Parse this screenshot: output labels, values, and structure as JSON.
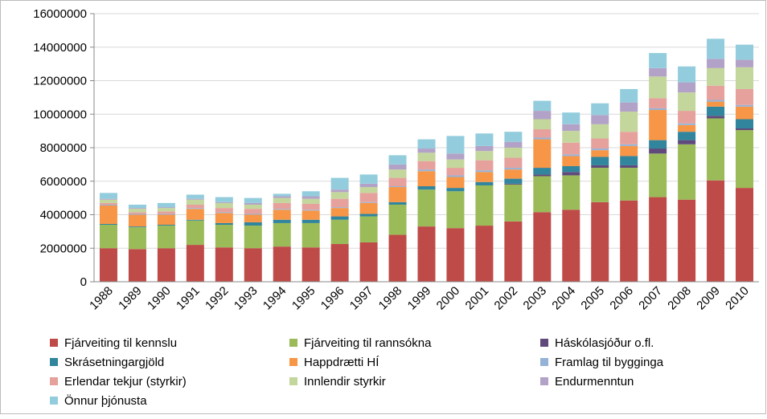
{
  "chart_data": {
    "type": "stacked_bar",
    "categories": [
      "1988",
      "1989",
      "1990",
      "1991",
      "1992",
      "1993",
      "1994",
      "1995",
      "1996",
      "1997",
      "1998",
      "1999",
      "2000",
      "2001",
      "2002",
      "2003",
      "2004",
      "2005",
      "2006",
      "2007",
      "2008",
      "2009",
      "2010"
    ],
    "ylim": [
      0,
      16000000
    ],
    "yticks": [
      0,
      2000000,
      4000000,
      6000000,
      8000000,
      10000000,
      12000000,
      14000000,
      16000000
    ],
    "grid": true,
    "series": [
      {
        "name": "Fjárveiting til kennslu",
        "color": "#be4b48",
        "values": [
          2000000,
          1950000,
          2000000,
          2200000,
          2050000,
          2000000,
          2100000,
          2050000,
          2250000,
          2350000,
          2800000,
          3300000,
          3200000,
          3350000,
          3600000,
          4150000,
          4300000,
          4750000,
          4850000,
          5050000,
          4900000,
          6050000,
          5600000
        ]
      },
      {
        "name": "Fjárveiting til rannsókna",
        "color": "#9bbb59",
        "values": [
          1400000,
          1300000,
          1350000,
          1450000,
          1350000,
          1350000,
          1400000,
          1450000,
          1450000,
          1550000,
          1800000,
          2200000,
          2200000,
          2400000,
          2200000,
          2150000,
          2050000,
          2050000,
          1950000,
          2600000,
          3300000,
          3700000,
          3450000
        ]
      },
      {
        "name": "Háskólasjóður o.fl.",
        "color": "#604a7b",
        "values": [
          0,
          0,
          0,
          0,
          0,
          0,
          0,
          0,
          0,
          0,
          0,
          0,
          0,
          0,
          50000,
          100000,
          200000,
          150000,
          150000,
          300000,
          250000,
          150000,
          100000
        ]
      },
      {
        "name": "Skrásetningargjöld",
        "color": "#31859c",
        "values": [
          50000,
          50000,
          50000,
          50000,
          100000,
          200000,
          200000,
          200000,
          200000,
          150000,
          150000,
          200000,
          200000,
          200000,
          300000,
          400000,
          350000,
          500000,
          550000,
          500000,
          500000,
          550000,
          550000
        ]
      },
      {
        "name": "Happdrætti HÍ",
        "color": "#f79646",
        "values": [
          1100000,
          700000,
          600000,
          650000,
          600000,
          450000,
          600000,
          550000,
          500000,
          650000,
          900000,
          900000,
          650000,
          600000,
          550000,
          1700000,
          600000,
          400000,
          600000,
          1800000,
          400000,
          300000,
          750000
        ]
      },
      {
        "name": "Framlag til bygginga",
        "color": "#95b3d7",
        "values": [
          50000,
          50000,
          50000,
          50000,
          50000,
          50000,
          50000,
          50000,
          50000,
          50000,
          50000,
          100000,
          100000,
          100000,
          100000,
          100000,
          100000,
          100000,
          100000,
          100000,
          100000,
          100000,
          100000
        ]
      },
      {
        "name": "Erlendar tekjur (styrkir)",
        "color": "#e6a19d",
        "values": [
          100000,
          100000,
          150000,
          200000,
          250000,
          300000,
          350000,
          350000,
          500000,
          550000,
          500000,
          500000,
          450000,
          600000,
          600000,
          500000,
          700000,
          600000,
          750000,
          600000,
          750000,
          850000,
          950000
        ]
      },
      {
        "name": "Innlendir styrkir",
        "color": "#c3d69b",
        "values": [
          200000,
          200000,
          200000,
          300000,
          300000,
          250000,
          300000,
          300000,
          400000,
          350000,
          500000,
          500000,
          500000,
          550000,
          600000,
          600000,
          700000,
          850000,
          1200000,
          1300000,
          1100000,
          1050000,
          1300000
        ]
      },
      {
        "name": "Endurmenntun",
        "color": "#b3a2c7",
        "values": [
          50000,
          50000,
          50000,
          50000,
          50000,
          100000,
          100000,
          150000,
          150000,
          200000,
          300000,
          250000,
          350000,
          300000,
          350000,
          500000,
          400000,
          550000,
          550000,
          500000,
          600000,
          550000,
          450000
        ]
      },
      {
        "name": "Önnur þjónusta",
        "color": "#93cddd",
        "values": [
          350000,
          200000,
          250000,
          250000,
          300000,
          300000,
          150000,
          300000,
          700000,
          550000,
          550000,
          550000,
          1050000,
          750000,
          600000,
          600000,
          700000,
          700000,
          800000,
          900000,
          950000,
          1200000,
          900000
        ]
      }
    ]
  }
}
